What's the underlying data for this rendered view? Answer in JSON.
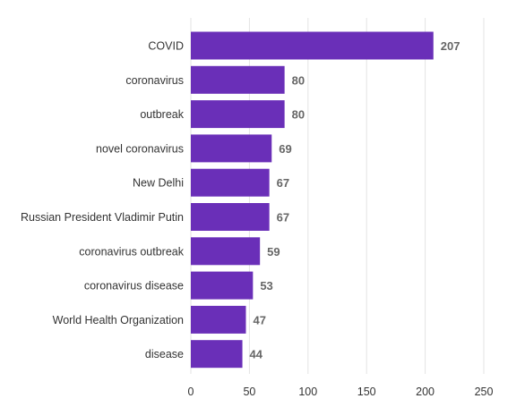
{
  "chart_data": {
    "type": "bar",
    "orientation": "horizontal",
    "categories": [
      "COVID",
      "coronavirus",
      "outbreak",
      "novel coronavirus",
      "New Delhi",
      "Russian President Vladimir Putin",
      "coronavirus outbreak",
      "coronavirus disease",
      "World Health Organization",
      "disease"
    ],
    "values": [
      207,
      80,
      80,
      69,
      67,
      67,
      59,
      53,
      47,
      44
    ],
    "xlim": [
      0,
      250
    ],
    "xticks": [
      0,
      50,
      100,
      150,
      200,
      250
    ],
    "bar_color": "#6a2fb8",
    "grid": true
  }
}
